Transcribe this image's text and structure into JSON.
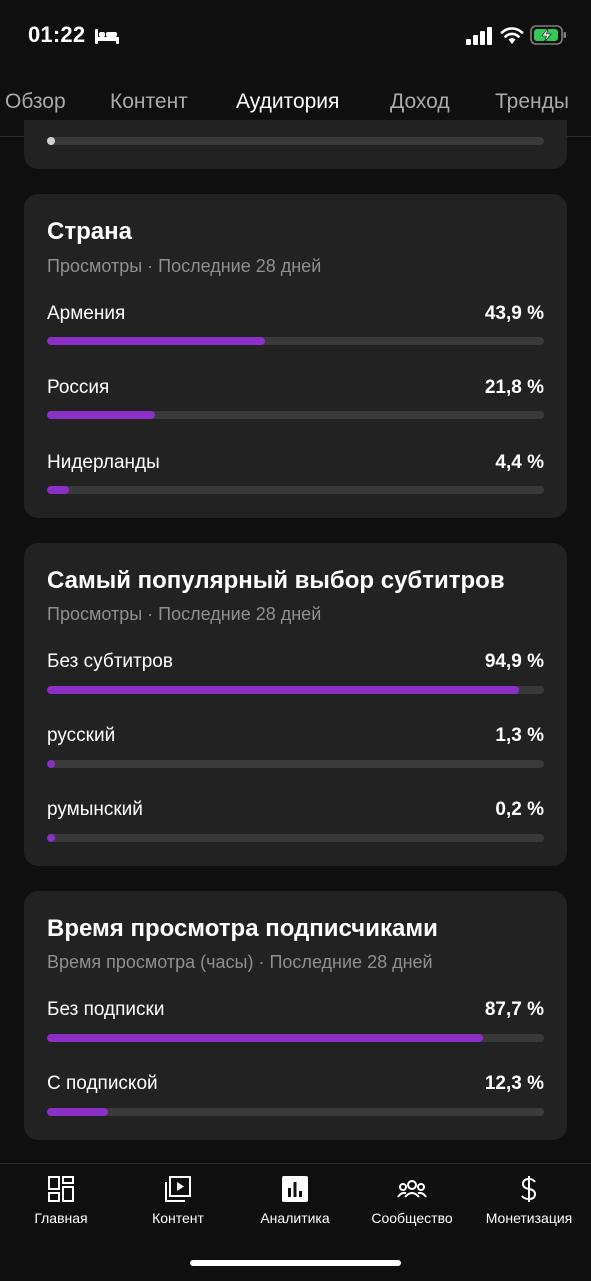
{
  "status_bar": {
    "time": "01:22"
  },
  "tabs": [
    {
      "label": "Обзор",
      "active": false
    },
    {
      "label": "Контент",
      "active": false
    },
    {
      "label": "Аудитория",
      "active": true
    },
    {
      "label": "Доход",
      "active": false
    },
    {
      "label": "Тренды",
      "active": false
    }
  ],
  "colors": {
    "accent": "#8c2fc7",
    "card": "#222222",
    "track": "#3a3a3a",
    "background": "#0f0f0f"
  },
  "cards": [
    {
      "title": "Страна",
      "subtitle": "Просмотры · Последние 28 дней",
      "rows": [
        {
          "label": "Армения",
          "value": "43,9 %",
          "percent": 43.9
        },
        {
          "label": "Россия",
          "value": "21,8 %",
          "percent": 21.8
        },
        {
          "label": "Нидерланды",
          "value": "4,4 %",
          "percent": 4.4
        }
      ]
    },
    {
      "title": "Самый популярный выбор субтитров",
      "subtitle": "Просмотры · Последние 28 дней",
      "rows": [
        {
          "label": "Без субтитров",
          "value": "94,9 %",
          "percent": 94.9
        },
        {
          "label": "русский",
          "value": "1,3 %",
          "percent": 1.3
        },
        {
          "label": "румынский",
          "value": "0,2 %",
          "percent": 0.2
        }
      ]
    },
    {
      "title": "Время просмотра подписчиками",
      "subtitle": "Время просмотра (часы) · Последние 28 дней",
      "rows": [
        {
          "label": "Без подписки",
          "value": "87,7 %",
          "percent": 87.7
        },
        {
          "label": "С подпиской",
          "value": "12,3 %",
          "percent": 12.3
        }
      ]
    }
  ],
  "bottom_nav": [
    {
      "label": "Главная",
      "icon": "dashboard-icon"
    },
    {
      "label": "Контент",
      "icon": "video-library-icon"
    },
    {
      "label": "Аналитика",
      "icon": "analytics-icon"
    },
    {
      "label": "Сообщество",
      "icon": "community-icon"
    },
    {
      "label": "Монетизация",
      "icon": "dollar-icon"
    }
  ]
}
